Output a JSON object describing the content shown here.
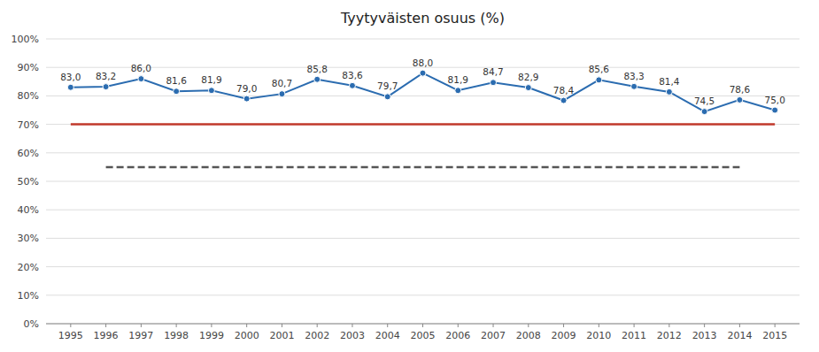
{
  "chart_data": {
    "type": "line",
    "title": "Tyytyväisten osuus (%)",
    "x": [
      1995,
      1996,
      1997,
      1998,
      1999,
      2000,
      2001,
      2002,
      2003,
      2004,
      2005,
      2006,
      2007,
      2008,
      2009,
      2010,
      2011,
      2012,
      2013,
      2014,
      2015
    ],
    "series": [
      {
        "values": [
          83.0,
          83.2,
          86.0,
          81.6,
          81.9,
          79.0,
          80.7,
          85.8,
          83.6,
          79.7,
          88.0,
          81.9,
          84.7,
          82.9,
          78.4,
          85.6,
          83.3,
          81.4,
          74.5,
          78.6,
          75.0
        ],
        "value_labels": [
          "83,0",
          "83,2",
          "86,0",
          "81,6",
          "81,9",
          "79,0",
          "80,7",
          "85,8",
          "83,6",
          "79,7",
          "88,0",
          "81,9",
          "84,7",
          "82,9",
          "78,4",
          "85,6",
          "83,3",
          "81,4",
          "74,5",
          "78,6",
          "75,0"
        ],
        "marker": "circle",
        "line_style": "solid"
      },
      {
        "x": [
          1995,
          2015
        ],
        "values": [
          70,
          70
        ],
        "line_style": "solid"
      },
      {
        "x": [
          1996,
          2014
        ],
        "values": [
          55,
          55
        ],
        "line_style": "dashed"
      }
    ],
    "xlim": [
      1994.3,
      2015.7
    ],
    "xticks": [
      1995,
      1996,
      1997,
      1998,
      1999,
      2000,
      2001,
      2002,
      2003,
      2004,
      2005,
      2006,
      2007,
      2008,
      2009,
      2010,
      2011,
      2012,
      2013,
      2014,
      2015
    ],
    "ylim": [
      0,
      100
    ],
    "yticks": [
      {
        "value": 0,
        "label": "0%"
      },
      {
        "value": 10,
        "label": "10%"
      },
      {
        "value": 20,
        "label": "20%"
      },
      {
        "value": 30,
        "label": "30%"
      },
      {
        "value": 40,
        "label": "40%"
      },
      {
        "value": 50,
        "label": "50%"
      },
      {
        "value": 60,
        "label": "60%"
      },
      {
        "value": 70,
        "label": "70%"
      },
      {
        "value": 80,
        "label": "80%"
      },
      {
        "value": 90,
        "label": "90%"
      },
      {
        "value": 100,
        "label": "100%"
      }
    ],
    "grid": true,
    "data_labels": true
  }
}
